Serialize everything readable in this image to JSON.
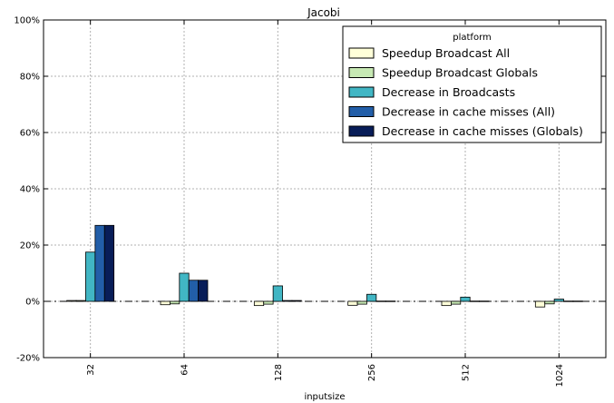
{
  "chart_data": {
    "type": "bar",
    "title": "Jacobi",
    "xlabel": "inputsize",
    "ylabel": "",
    "categories": [
      "32",
      "64",
      "128",
      "256",
      "512",
      "1024"
    ],
    "ylim": [
      -20,
      100
    ],
    "yticks": [
      -20,
      0,
      20,
      40,
      60,
      80,
      100
    ],
    "ytick_labels": [
      "-20%",
      "0%",
      "20%",
      "40%",
      "60%",
      "80%",
      "100%"
    ],
    "grid": true,
    "reference_line": 0,
    "legend": {
      "title": "platform",
      "placement": "top-right"
    },
    "series": [
      {
        "name": "Speedup Broadcast All",
        "color": "#ffffd9",
        "values": [
          0.3,
          -1.2,
          -1.5,
          -1.4,
          -1.5,
          -2.0
        ]
      },
      {
        "name": "Speedup Broadcast Globals",
        "color": "#c7e9b4",
        "values": [
          0.3,
          -0.9,
          -1.0,
          -1.0,
          -1.0,
          -0.9
        ]
      },
      {
        "name": "Decrease in Broadcasts",
        "color": "#41b6c4",
        "values": [
          17.5,
          10.0,
          5.5,
          2.5,
          1.5,
          0.8
        ]
      },
      {
        "name": "Decrease in cache misses (All)",
        "color": "#225ea8",
        "values": [
          27.0,
          7.5,
          0.3,
          0.1,
          0.1,
          0.1
        ]
      },
      {
        "name": "Decrease in cache misses (Globals)",
        "color": "#081d58",
        "values": [
          27.0,
          7.5,
          0.3,
          0.1,
          0.1,
          0.1
        ]
      }
    ]
  }
}
